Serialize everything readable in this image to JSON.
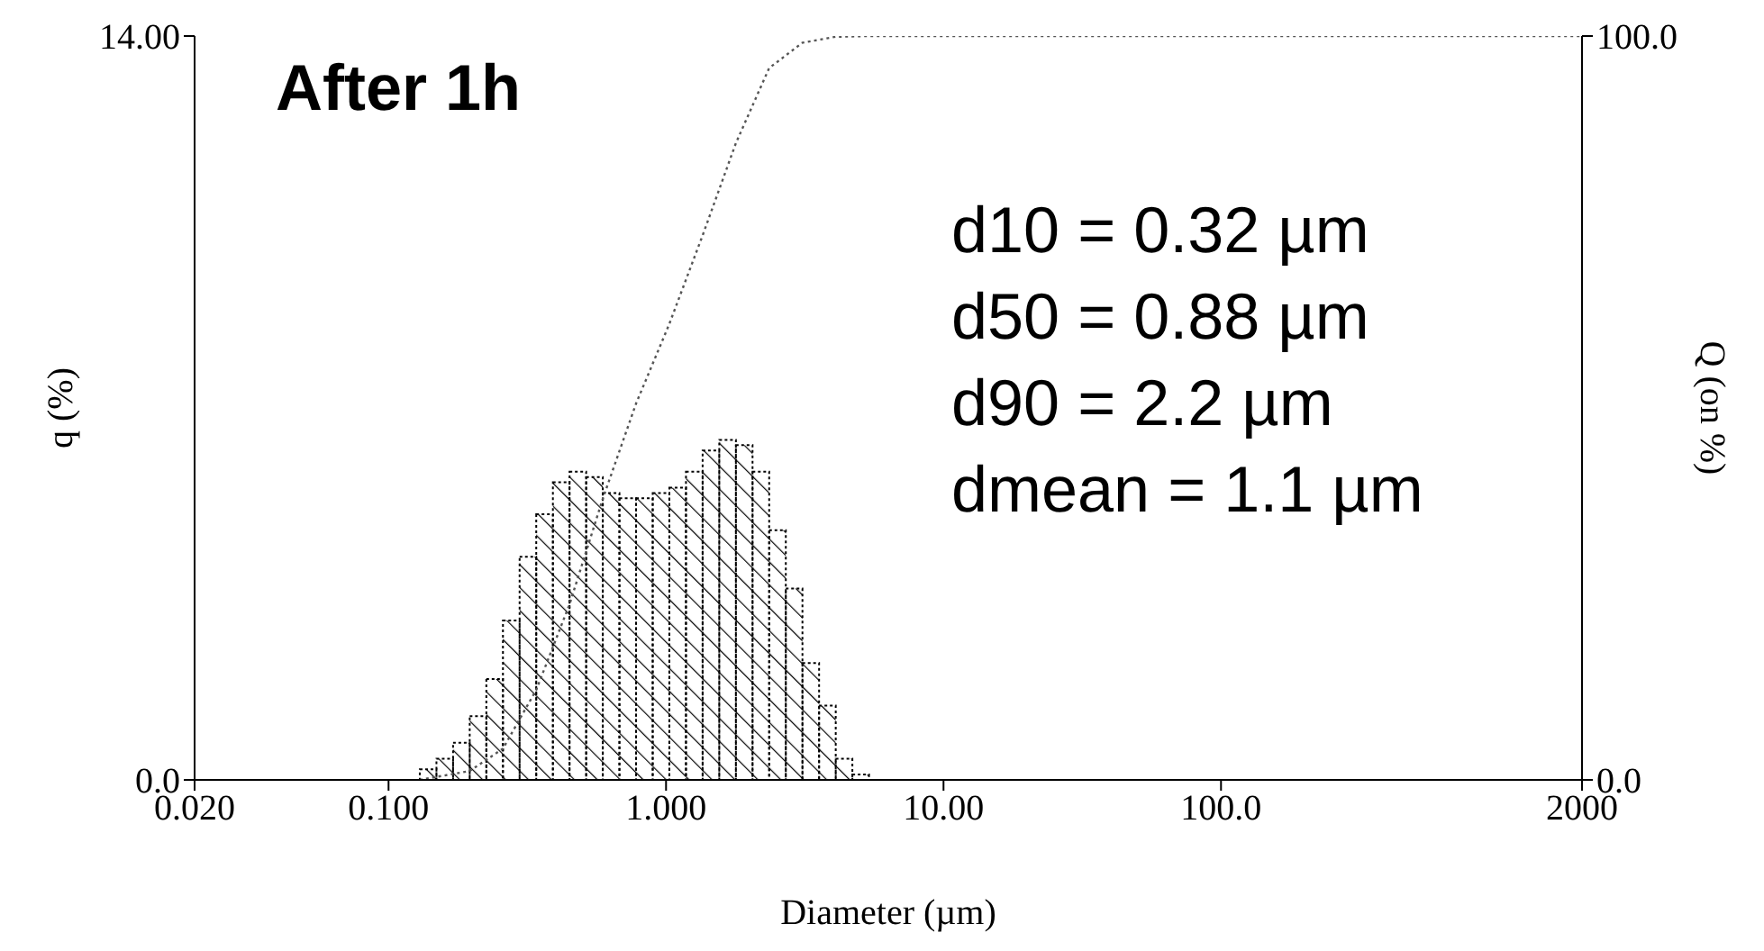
{
  "chart_data": {
    "type": "histogram",
    "title": "After 1h",
    "xlabel": "Diameter (µm)",
    "ylabel": "q (%)",
    "y2label": "Q (on %)",
    "annotations": [
      "d10 = 0.32 µm",
      "d50 = 0.88 µm",
      "d90 = 2.2 µm",
      "dmean = 1.1 µm"
    ],
    "log": "x",
    "xlim": [
      0.02,
      2000
    ],
    "xticks": [
      {
        "value": 0.02,
        "label": "0.020"
      },
      {
        "value": 0.1,
        "label": "0.100"
      },
      {
        "value": 1,
        "label": "1.000"
      },
      {
        "value": 10,
        "label": "10.00"
      },
      {
        "value": 100,
        "label": "100.0"
      },
      {
        "value": 2000,
        "label": "2000"
      }
    ],
    "ylim": [
      0,
      14
    ],
    "yticks": [
      {
        "value": 0,
        "label": "0.0"
      },
      {
        "value": 14,
        "label": "14.00"
      }
    ],
    "y2lim": [
      0,
      100
    ],
    "y2ticks": [
      {
        "value": 0,
        "label": "0.0"
      },
      {
        "value": 100,
        "label": "100.0"
      }
    ],
    "series": [
      {
        "type": "histogram",
        "color": "#000000",
        "bins": [
          0.1296,
          0.1488,
          0.1708,
          0.1961,
          0.2251,
          0.2584,
          0.2967,
          0.3406,
          0.3911,
          0.449,
          0.5154,
          0.5917,
          0.6793,
          0.7799,
          0.8953,
          1.0279,
          1.18,
          1.3548,
          1.5554,
          1.7856,
          2.05,
          2.3535,
          2.7019,
          3.1019,
          3.5612,
          4.0884,
          4.6938,
          5.3887
        ],
        "values": [
          0.2,
          0.4,
          0.7,
          1.2,
          1.9,
          3.0,
          4.2,
          5.0,
          5.6,
          5.8,
          5.7,
          5.4,
          5.3,
          5.3,
          5.4,
          5.5,
          5.8,
          6.2,
          6.4,
          6.3,
          5.8,
          4.7,
          3.6,
          2.2,
          1.4,
          0.4,
          0.1
        ]
      },
      {
        "type": "line",
        "axis": "y2",
        "color": "#555555",
        "line_style": "dotted",
        "x": [
          0.1296,
          0.1961,
          0.2584,
          0.3406,
          0.449,
          0.5917,
          0.7799,
          1.0279,
          1.3548,
          1.7856,
          2.3535,
          3.1019,
          4.0884,
          5.3887,
          2000
        ],
        "values": [
          0,
          1.2,
          4.2,
          12.1,
          23.6,
          37.8,
          50.6,
          61.3,
          73.2,
          85.6,
          95.7,
          99.1,
          99.9,
          100,
          100
        ]
      }
    ]
  }
}
